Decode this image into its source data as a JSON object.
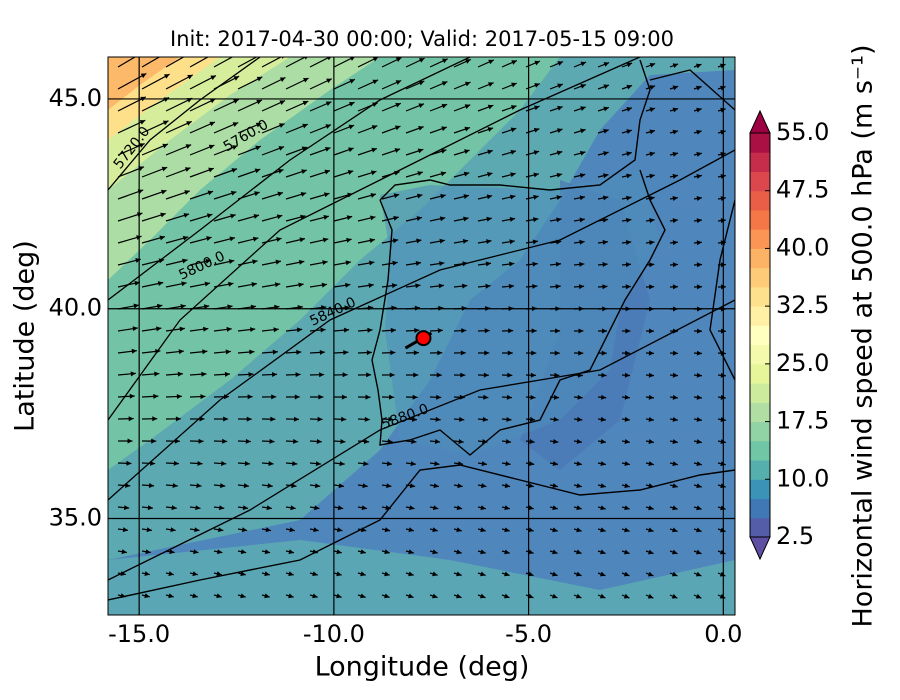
{
  "chart_data": {
    "type": "contour-map",
    "title": "Init: 2017-04-30 00:00; Valid: 2017-05-15 09:00",
    "x_label": "Longitude (deg)",
    "y_label": "Latitude (deg)",
    "xlim": [
      -15.8,
      0.3
    ],
    "ylim": [
      32.7,
      46.0
    ],
    "xticks": [
      {
        "value": -15,
        "label": "-15.0"
      },
      {
        "value": -10,
        "label": "-10.0"
      },
      {
        "value": -5,
        "label": "-5.0"
      },
      {
        "value": 0,
        "label": "0.0"
      }
    ],
    "yticks": [
      {
        "value": 35,
        "label": "35.0"
      },
      {
        "value": 40,
        "label": "40.0"
      },
      {
        "value": 45,
        "label": "45.0"
      }
    ],
    "grid": true,
    "contour_labels": [
      "5720.0",
      "5760.0",
      "5800.0",
      "5840.0",
      "5880.0"
    ],
    "marker": {
      "x": -7.7,
      "y": 39.3,
      "color": "#ff0000"
    },
    "colorbar": {
      "label": "Horizontal wind speed at 500.0 hPa (m s⁻¹)",
      "lim": [
        2.5,
        55
      ],
      "ticks": [
        2.5,
        {
          "value": 10,
          "label": "10.0"
        },
        17.5,
        {
          "value": 25,
          "label": "25.0"
        },
        32.5,
        {
          "value": 40,
          "label": "40.0"
        },
        47.5,
        {
          "value": 55,
          "label": "55.0"
        }
      ],
      "colormap": [
        "#5e4fa2",
        "#3288bd",
        "#66c2a5",
        "#abdda4",
        "#e6f598",
        "#ffffbf",
        "#fee08b",
        "#fdae61",
        "#f46d43",
        "#d53e4f",
        "#9e0142"
      ]
    }
  }
}
